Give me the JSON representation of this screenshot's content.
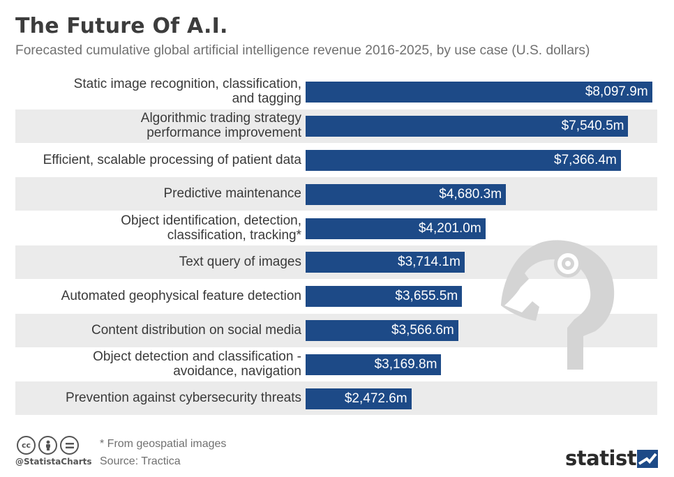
{
  "header": {
    "title": "The Future Of A.I.",
    "subtitle": "Forecasted cumulative global artificial intelligence revenue 2016-2025, by use case (U.S. dollars)"
  },
  "chart_data": {
    "type": "bar",
    "orientation": "horizontal",
    "title": "The Future Of A.I.",
    "subtitle": "Forecasted cumulative global artificial intelligence revenue 2016-2025, by use case (U.S. dollars)",
    "xlabel": "",
    "ylabel": "",
    "unit": "million U.S. dollars",
    "xlim": [
      0,
      8250
    ],
    "grid": false,
    "legend": "none",
    "bar_color": "#1d4a87",
    "categories": [
      "Static image recognition, classification, and tagging",
      "Algorithmic trading strategy performance improvement",
      "Efficient, scalable processing of patient data",
      "Predictive maintenance",
      "Object identification, detection, classification, tracking*",
      "Text query of images",
      "Automated geophysical feature detection",
      "Content distribution on social media",
      "Object detection and classification - avoidance, navigation",
      "Prevention against cybersecurity threats"
    ],
    "category_lines": [
      [
        "Static image recognition, classification,",
        "and tagging"
      ],
      [
        "Algorithmic trading strategy",
        "performance improvement"
      ],
      [
        "Efficient, scalable processing of patient data"
      ],
      [
        "Predictive maintenance"
      ],
      [
        "Object identification, detection,",
        "classification, tracking*"
      ],
      [
        "Text query of images"
      ],
      [
        "Automated geophysical feature detection"
      ],
      [
        "Content distribution on social media"
      ],
      [
        "Object detection and classification -",
        "avoidance, navigation"
      ],
      [
        "Prevention against cybersecurity threats"
      ]
    ],
    "values": [
      8097.9,
      7540.5,
      7366.4,
      4680.3,
      4201.0,
      3714.1,
      3655.5,
      3566.6,
      3169.8,
      2472.6
    ],
    "value_labels": [
      "$8,097.9m",
      "$7,540.5m",
      "$7,366.4m",
      "$4,680.3m",
      "$4,201.0m",
      "$3,714.1m",
      "$3,655.5m",
      "$3,566.6m",
      "$3,169.8m",
      "$2,472.6m"
    ]
  },
  "footer": {
    "license_icons": [
      "cc-icon",
      "by-attribution-icon",
      "nd-equals-icon"
    ],
    "handle": "@StatistaCharts",
    "footnote": "* From geospatial images",
    "source": "Source: Tractica",
    "brand": "statista",
    "colors": {
      "bar": "#1d4a87",
      "row_shade": "#ebebeb",
      "watermark": "#d4d4d4"
    }
  }
}
